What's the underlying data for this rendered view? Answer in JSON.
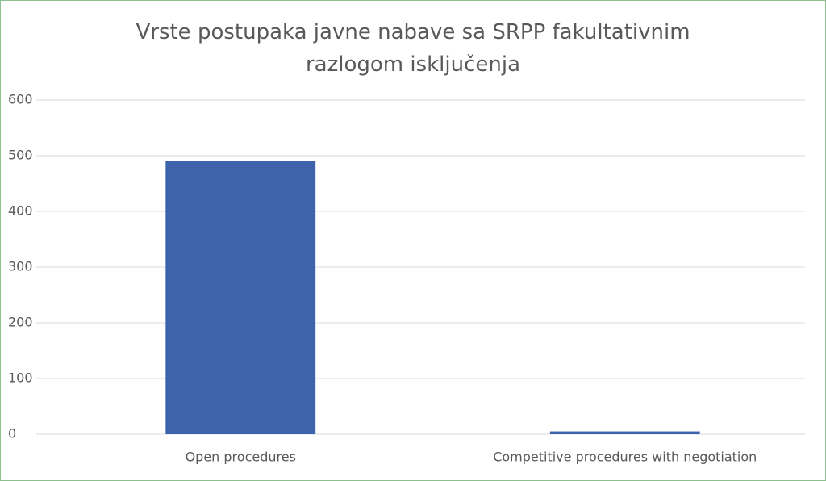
{
  "chart_data": {
    "type": "bar",
    "title": "Vrste postupaka javne nabave sa SRPP fakultativnim razlogom isključenja",
    "categories": [
      "Open procedures",
      "Competitive procedures with negotiation"
    ],
    "values": [
      491,
      5
    ],
    "color": "#3c63ab",
    "ylim": [
      0,
      600
    ],
    "yticks": [
      0,
      100,
      200,
      300,
      400,
      500,
      600
    ],
    "grid": true
  }
}
